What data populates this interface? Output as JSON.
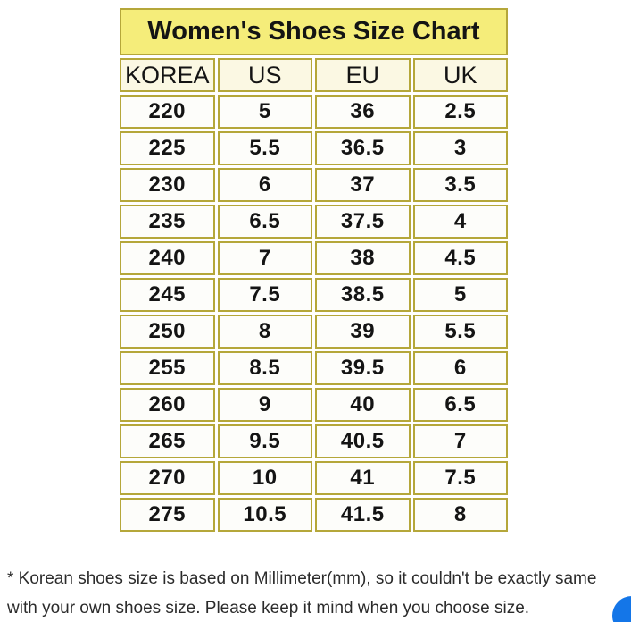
{
  "title": "Women's Shoes Size Chart",
  "table": {
    "headers": [
      "KOREA",
      "US",
      "EU",
      "UK"
    ],
    "rows": [
      [
        "220",
        "5",
        "36",
        "2.5"
      ],
      [
        "225",
        "5.5",
        "36.5",
        "3"
      ],
      [
        "230",
        "6",
        "37",
        "3.5"
      ],
      [
        "235",
        "6.5",
        "37.5",
        "4"
      ],
      [
        "240",
        "7",
        "38",
        "4.5"
      ],
      [
        "245",
        "7.5",
        "38.5",
        "5"
      ],
      [
        "250",
        "8",
        "39",
        "5.5"
      ],
      [
        "255",
        "8.5",
        "39.5",
        "6"
      ],
      [
        "260",
        "9",
        "40",
        "6.5"
      ],
      [
        "265",
        "9.5",
        "40.5",
        "7"
      ],
      [
        "270",
        "10",
        "41",
        "7.5"
      ],
      [
        "275",
        "10.5",
        "41.5",
        "8"
      ]
    ]
  },
  "note": {
    "line1": "* Korean shoes size is based on Millimeter(mm), so it couldn't be exactly same",
    "line2": "with your own shoes size. Please keep it mind when you choose size."
  },
  "colors": {
    "title_bg": "#F5ED7A",
    "header_bg": "#FBF8E3",
    "cell_bg": "#FDFDFA",
    "border": "#B5A73A",
    "text": "#141414",
    "note_text": "#2B2B2B",
    "fab_blue": "#1476E8"
  }
}
